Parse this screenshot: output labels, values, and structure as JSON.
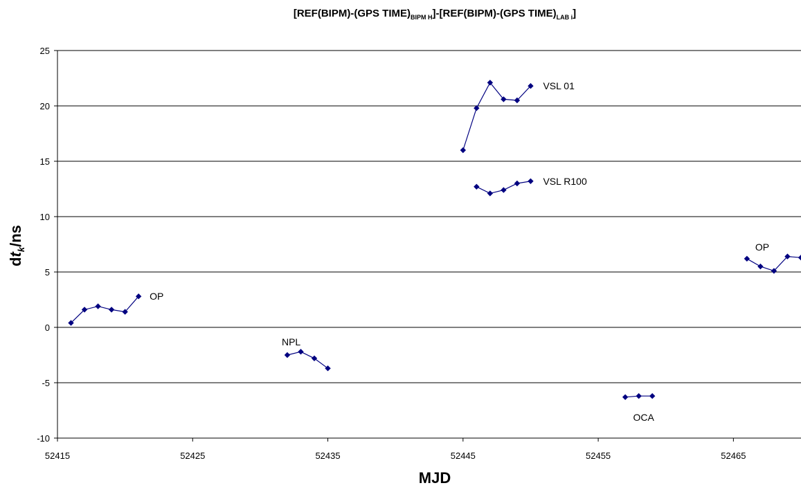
{
  "chart_data": {
    "type": "line",
    "title": {
      "part1": "[REF(BIPM)-(GPS TIME)",
      "sub1": "BIPM H",
      "part2": "]-[REF(BIPM)-(GPS TIME)",
      "sub2": "LAB i",
      "part3": "]"
    },
    "xlabel": "MJD",
    "ylabel": {
      "prefix": "d",
      "italic": "t",
      "sub": "k",
      "suffix": "/ns"
    },
    "xlim": [
      52415,
      52470
    ],
    "ylim": [
      -10,
      25
    ],
    "xticks": [
      "52415",
      "52425",
      "52435",
      "52445",
      "52455",
      "52465"
    ],
    "yticks": [
      "-10",
      "-5",
      "0",
      "5",
      "10",
      "15",
      "20",
      "25"
    ],
    "grid": "horizontal",
    "series_color": "#000080",
    "series": [
      {
        "name": "OP",
        "x": [
          52416,
          52417,
          52418,
          52419,
          52420,
          52421
        ],
        "y": [
          0.4,
          1.6,
          1.9,
          1.6,
          1.4,
          2.8
        ]
      },
      {
        "name": "NPL",
        "x": [
          52432,
          52433,
          52434,
          52435
        ],
        "y": [
          -2.5,
          -2.2,
          -2.8,
          -3.7
        ]
      },
      {
        "name": "VSL  01",
        "x": [
          52445,
          52446,
          52447,
          52448,
          52449,
          52450
        ],
        "y": [
          16.0,
          19.8,
          22.1,
          20.6,
          20.5,
          21.8
        ]
      },
      {
        "name": "VSL  R100",
        "x": [
          52446,
          52447,
          52448,
          52449,
          52450
        ],
        "y": [
          12.7,
          12.1,
          12.4,
          13.0,
          13.2
        ]
      },
      {
        "name": "OCA",
        "x": [
          52457,
          52458,
          52459
        ],
        "y": [
          -6.3,
          -6.2,
          -6.2
        ]
      },
      {
        "name": "OP",
        "x": [
          52466,
          52467,
          52468,
          52469,
          52470
        ],
        "y": [
          6.2,
          5.5,
          5.1,
          6.4,
          6.3
        ]
      }
    ]
  }
}
